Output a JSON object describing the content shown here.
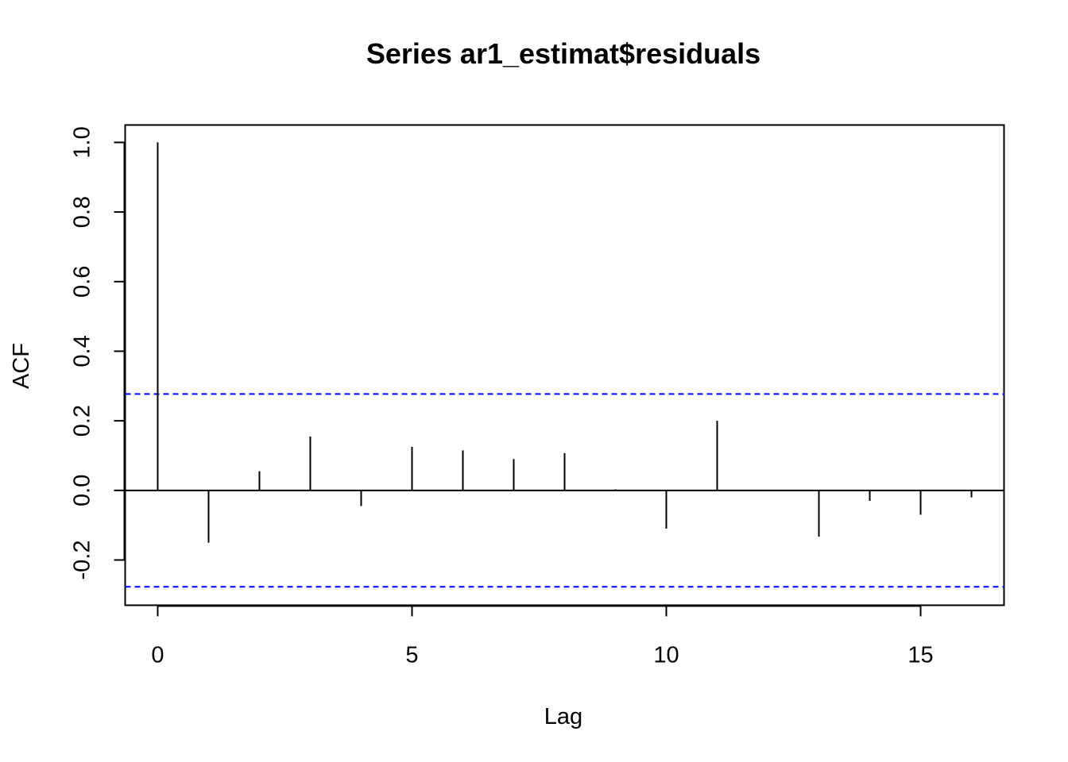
{
  "chart_data": {
    "type": "bar",
    "title": "Series  ar1_estimat$residuals",
    "xlabel": "Lag",
    "ylabel": "ACF",
    "xlim": [
      -0.64,
      16.64
    ],
    "ylim": [
      -0.33,
      1.05
    ],
    "x_ticks": [
      0,
      5,
      10,
      15
    ],
    "y_ticks": [
      -0.2,
      0.0,
      0.2,
      0.4,
      0.6,
      0.8,
      1.0
    ],
    "x_tick_labels": [
      "0",
      "5",
      "10",
      "15"
    ],
    "y_tick_labels": [
      "-0.2",
      "0.0",
      "0.2",
      "0.4",
      "0.6",
      "0.8",
      "1.0"
    ],
    "lags": [
      0,
      1,
      2,
      3,
      4,
      5,
      6,
      7,
      8,
      9,
      10,
      11,
      12,
      13,
      14,
      15,
      16
    ],
    "acf": [
      1.0,
      -0.15,
      0.055,
      0.155,
      -0.045,
      0.125,
      0.115,
      0.09,
      0.107,
      0.003,
      -0.11,
      0.2,
      0.0,
      -0.133,
      -0.03,
      -0.07,
      -0.02
    ],
    "confidence_bounds": [
      0.277,
      -0.277
    ],
    "confidence_color": "#0000ff",
    "bar_color": "#000000",
    "grid": false
  }
}
